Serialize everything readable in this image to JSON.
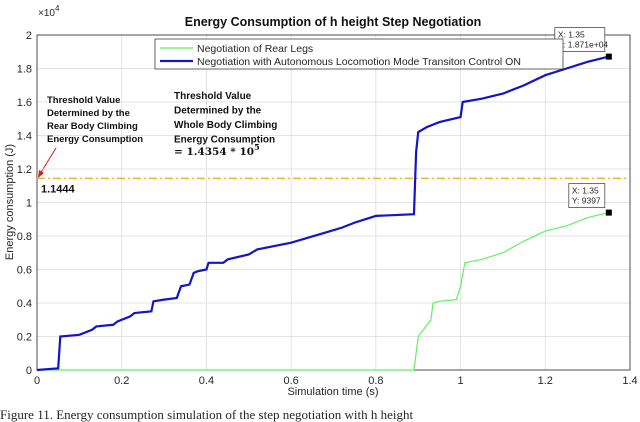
{
  "chart_data": {
    "type": "line",
    "title": "Energy Consumption of h height Step Negotiation",
    "x_label": "Simulation time (s)",
    "y_label": "Energy consumption (J)",
    "y_multiplier": {
      "base": "×10",
      "exponent": "4"
    },
    "xlim": [
      0,
      1.4
    ],
    "xticks": [
      0,
      0.2,
      0.4,
      0.6,
      0.8,
      1,
      1.2,
      1.4
    ],
    "ylim": [
      0,
      2
    ],
    "yticks": [
      0,
      0.2,
      0.4,
      0.6,
      0.8,
      1,
      1.2,
      1.4,
      1.6,
      1.8,
      2
    ],
    "grid": true,
    "legend": "upper left",
    "series": [
      {
        "name": "Negotiation of Rear Legs",
        "color": "#66ee66",
        "x": [
          0,
          0.89,
          0.9,
          0.93,
          0.935,
          0.95,
          0.99,
          1.0,
          1.01,
          1.05,
          1.1,
          1.15,
          1.2,
          1.25,
          1.3,
          1.35
        ],
        "values": [
          0,
          0,
          0.2,
          0.3,
          0.4,
          0.41,
          0.42,
          0.5,
          0.64,
          0.66,
          0.7,
          0.77,
          0.83,
          0.86,
          0.91,
          0.9397
        ]
      },
      {
        "name": "Negotiation with Autonomous Locomotion Mode Transiton Control ON",
        "color": "#1414c8",
        "x": [
          0,
          0.05,
          0.055,
          0.1,
          0.13,
          0.14,
          0.18,
          0.19,
          0.22,
          0.23,
          0.27,
          0.275,
          0.3,
          0.33,
          0.34,
          0.36,
          0.37,
          0.38,
          0.4,
          0.405,
          0.44,
          0.45,
          0.5,
          0.52,
          0.6,
          0.68,
          0.72,
          0.75,
          0.8,
          0.89,
          0.895,
          0.9,
          0.92,
          0.95,
          1.0,
          1.005,
          1.05,
          1.1,
          1.15,
          1.2,
          1.25,
          1.3,
          1.35
        ],
        "values": [
          0,
          0.01,
          0.2,
          0.21,
          0.24,
          0.26,
          0.27,
          0.29,
          0.32,
          0.34,
          0.35,
          0.41,
          0.42,
          0.43,
          0.5,
          0.51,
          0.58,
          0.59,
          0.6,
          0.64,
          0.64,
          0.66,
          0.69,
          0.72,
          0.76,
          0.82,
          0.85,
          0.88,
          0.92,
          0.93,
          1.3,
          1.42,
          1.45,
          1.48,
          1.51,
          1.6,
          1.62,
          1.65,
          1.7,
          1.76,
          1.8,
          1.84,
          1.871
        ]
      }
    ],
    "threshold": {
      "value": 1.1444,
      "color": "#f0b429"
    },
    "annotations": {
      "rear": [
        "Threshold Value",
        "Determined by the",
        "Rear Body Climbing",
        "Energy Consumption"
      ],
      "whole": [
        "Threshold Value",
        "Determined by the",
        "Whole Body Climbing",
        "Energy Consumption"
      ],
      "whole_value": {
        "text": "= 1.4354 * 10",
        "exponent": "5"
      }
    },
    "datatips": [
      {
        "x_text": "X: 1.35",
        "y_text": "Y: 9397"
      },
      {
        "x_text": "X: 1.35",
        "y_text": "Y: 1.871e+04"
      }
    ],
    "caption": "Figure 11. Energy consumption simulation of the step negotiation with h height"
  }
}
